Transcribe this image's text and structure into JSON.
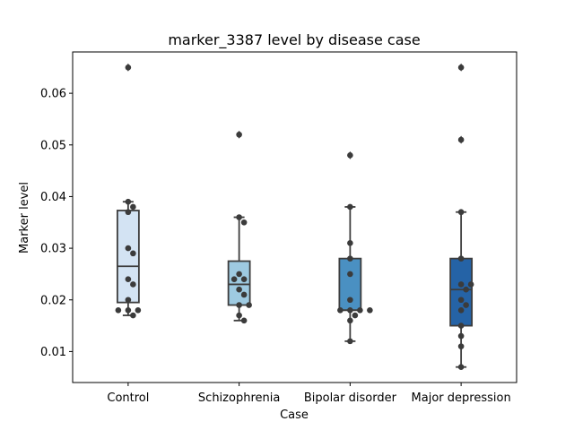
{
  "chart_data": {
    "type": "box",
    "title": "marker_3387 level by disease case",
    "xlabel": "Case",
    "ylabel": "Marker level",
    "ylim": [
      0.004,
      0.068
    ],
    "yticks": [
      "0.01",
      "0.02",
      "0.03",
      "0.04",
      "0.05",
      "0.06"
    ],
    "grid": false,
    "categories": [
      "Control",
      "Schizophrenia",
      "Bipolar disorder",
      "Major depression"
    ],
    "colors": [
      "#d3e3f3",
      "#9ecae1",
      "#4a90c2",
      "#2563a6"
    ],
    "boxes": [
      {
        "q1": 0.0195,
        "median": 0.0265,
        "q3": 0.0373,
        "whisker_low": 0.017,
        "whisker_high": 0.039,
        "outliers": [
          0.065
        ]
      },
      {
        "q1": 0.019,
        "median": 0.023,
        "q3": 0.0275,
        "whisker_low": 0.016,
        "whisker_high": 0.036,
        "outliers": [
          0.052
        ]
      },
      {
        "q1": 0.018,
        "median": 0.018,
        "q3": 0.028,
        "whisker_low": 0.012,
        "whisker_high": 0.038,
        "outliers": [
          0.048
        ]
      },
      {
        "q1": 0.015,
        "median": 0.022,
        "q3": 0.028,
        "whisker_low": 0.007,
        "whisker_high": 0.037,
        "outliers": [
          0.051,
          0.065
        ]
      }
    ],
    "points": [
      [
        0.065,
        0.039,
        0.038,
        0.037,
        0.03,
        0.029,
        0.024,
        0.023,
        0.02,
        0.018,
        0.018,
        0.018,
        0.017
      ],
      [
        0.052,
        0.036,
        0.035,
        0.025,
        0.024,
        0.024,
        0.022,
        0.021,
        0.019,
        0.019,
        0.017,
        0.016
      ],
      [
        0.048,
        0.038,
        0.031,
        0.028,
        0.025,
        0.02,
        0.018,
        0.018,
        0.018,
        0.018,
        0.017,
        0.016,
        0.012
      ],
      [
        0.065,
        0.051,
        0.037,
        0.028,
        0.023,
        0.023,
        0.022,
        0.02,
        0.019,
        0.018,
        0.015,
        0.013,
        0.011,
        0.007
      ]
    ]
  }
}
